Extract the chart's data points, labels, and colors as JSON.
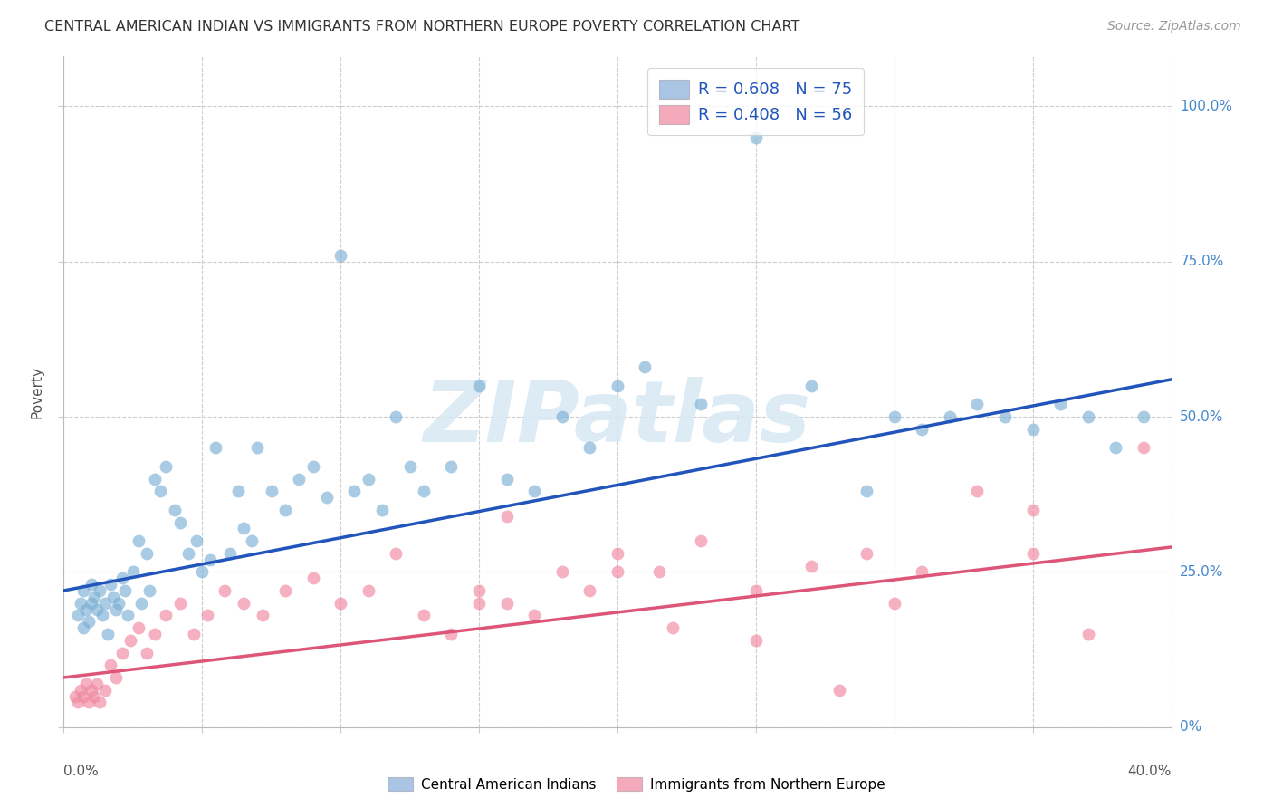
{
  "title": "CENTRAL AMERICAN INDIAN VS IMMIGRANTS FROM NORTHERN EUROPE POVERTY CORRELATION CHART",
  "source": "Source: ZipAtlas.com",
  "ylabel": "Poverty",
  "legend1_color": "#aac4e4",
  "legend2_color": "#f4aabb",
  "scatter1_color": "#7bafd4",
  "scatter2_color": "#f088a0",
  "line1_color": "#2255bb",
  "line2_color": "#dd5577",
  "background_color": "#ffffff",
  "grid_color": "#cccccc",
  "title_color": "#333333",
  "source_color": "#999999",
  "label_color": "#4488cc",
  "watermark_color": "#d8e8f4",
  "watermark": "ZIPatlas",
  "N1": 75,
  "N2": 56,
  "xlim": [
    0.0,
    0.4
  ],
  "ylim": [
    0.0,
    1.08
  ],
  "line1_x0": 0.0,
  "line1_y0": 0.22,
  "line1_x1": 0.4,
  "line1_y1": 0.56,
  "line2_x0": 0.0,
  "line2_y0": 0.08,
  "line2_x1": 0.4,
  "line2_y1": 0.29,
  "blue_x": [
    0.005,
    0.006,
    0.007,
    0.007,
    0.008,
    0.009,
    0.01,
    0.01,
    0.011,
    0.012,
    0.013,
    0.014,
    0.015,
    0.016,
    0.017,
    0.018,
    0.019,
    0.02,
    0.021,
    0.022,
    0.023,
    0.025,
    0.027,
    0.028,
    0.03,
    0.031,
    0.033,
    0.035,
    0.037,
    0.04,
    0.042,
    0.045,
    0.048,
    0.05,
    0.053,
    0.055,
    0.06,
    0.063,
    0.065,
    0.068,
    0.07,
    0.075,
    0.08,
    0.085,
    0.09,
    0.095,
    0.1,
    0.105,
    0.11,
    0.115,
    0.12,
    0.125,
    0.13,
    0.14,
    0.15,
    0.16,
    0.17,
    0.18,
    0.19,
    0.2,
    0.21,
    0.23,
    0.25,
    0.27,
    0.29,
    0.3,
    0.31,
    0.32,
    0.33,
    0.34,
    0.35,
    0.36,
    0.37,
    0.38,
    0.39
  ],
  "blue_y": [
    0.18,
    0.2,
    0.16,
    0.22,
    0.19,
    0.17,
    0.2,
    0.23,
    0.21,
    0.19,
    0.22,
    0.18,
    0.2,
    0.15,
    0.23,
    0.21,
    0.19,
    0.2,
    0.24,
    0.22,
    0.18,
    0.25,
    0.3,
    0.2,
    0.28,
    0.22,
    0.4,
    0.38,
    0.42,
    0.35,
    0.33,
    0.28,
    0.3,
    0.25,
    0.27,
    0.45,
    0.28,
    0.38,
    0.32,
    0.3,
    0.45,
    0.38,
    0.35,
    0.4,
    0.42,
    0.37,
    0.76,
    0.38,
    0.4,
    0.35,
    0.5,
    0.42,
    0.38,
    0.42,
    0.55,
    0.4,
    0.38,
    0.5,
    0.45,
    0.55,
    0.58,
    0.52,
    0.95,
    0.55,
    0.38,
    0.5,
    0.48,
    0.5,
    0.52,
    0.5,
    0.48,
    0.52,
    0.5,
    0.45,
    0.5
  ],
  "pink_x": [
    0.004,
    0.005,
    0.006,
    0.007,
    0.008,
    0.009,
    0.01,
    0.011,
    0.012,
    0.013,
    0.015,
    0.017,
    0.019,
    0.021,
    0.024,
    0.027,
    0.03,
    0.033,
    0.037,
    0.042,
    0.047,
    0.052,
    0.058,
    0.065,
    0.072,
    0.08,
    0.09,
    0.1,
    0.11,
    0.12,
    0.13,
    0.14,
    0.15,
    0.16,
    0.17,
    0.18,
    0.19,
    0.2,
    0.215,
    0.23,
    0.25,
    0.27,
    0.29,
    0.31,
    0.33,
    0.35,
    0.37,
    0.39,
    0.15,
    0.2,
    0.25,
    0.3,
    0.35,
    0.16,
    0.22,
    0.28
  ],
  "pink_y": [
    0.05,
    0.04,
    0.06,
    0.05,
    0.07,
    0.04,
    0.06,
    0.05,
    0.07,
    0.04,
    0.06,
    0.1,
    0.08,
    0.12,
    0.14,
    0.16,
    0.12,
    0.15,
    0.18,
    0.2,
    0.15,
    0.18,
    0.22,
    0.2,
    0.18,
    0.22,
    0.24,
    0.2,
    0.22,
    0.28,
    0.18,
    0.15,
    0.22,
    0.2,
    0.18,
    0.25,
    0.22,
    0.28,
    0.25,
    0.3,
    0.22,
    0.26,
    0.28,
    0.25,
    0.38,
    0.35,
    0.15,
    0.45,
    0.2,
    0.25,
    0.14,
    0.2,
    0.28,
    0.34,
    0.16,
    0.06
  ]
}
